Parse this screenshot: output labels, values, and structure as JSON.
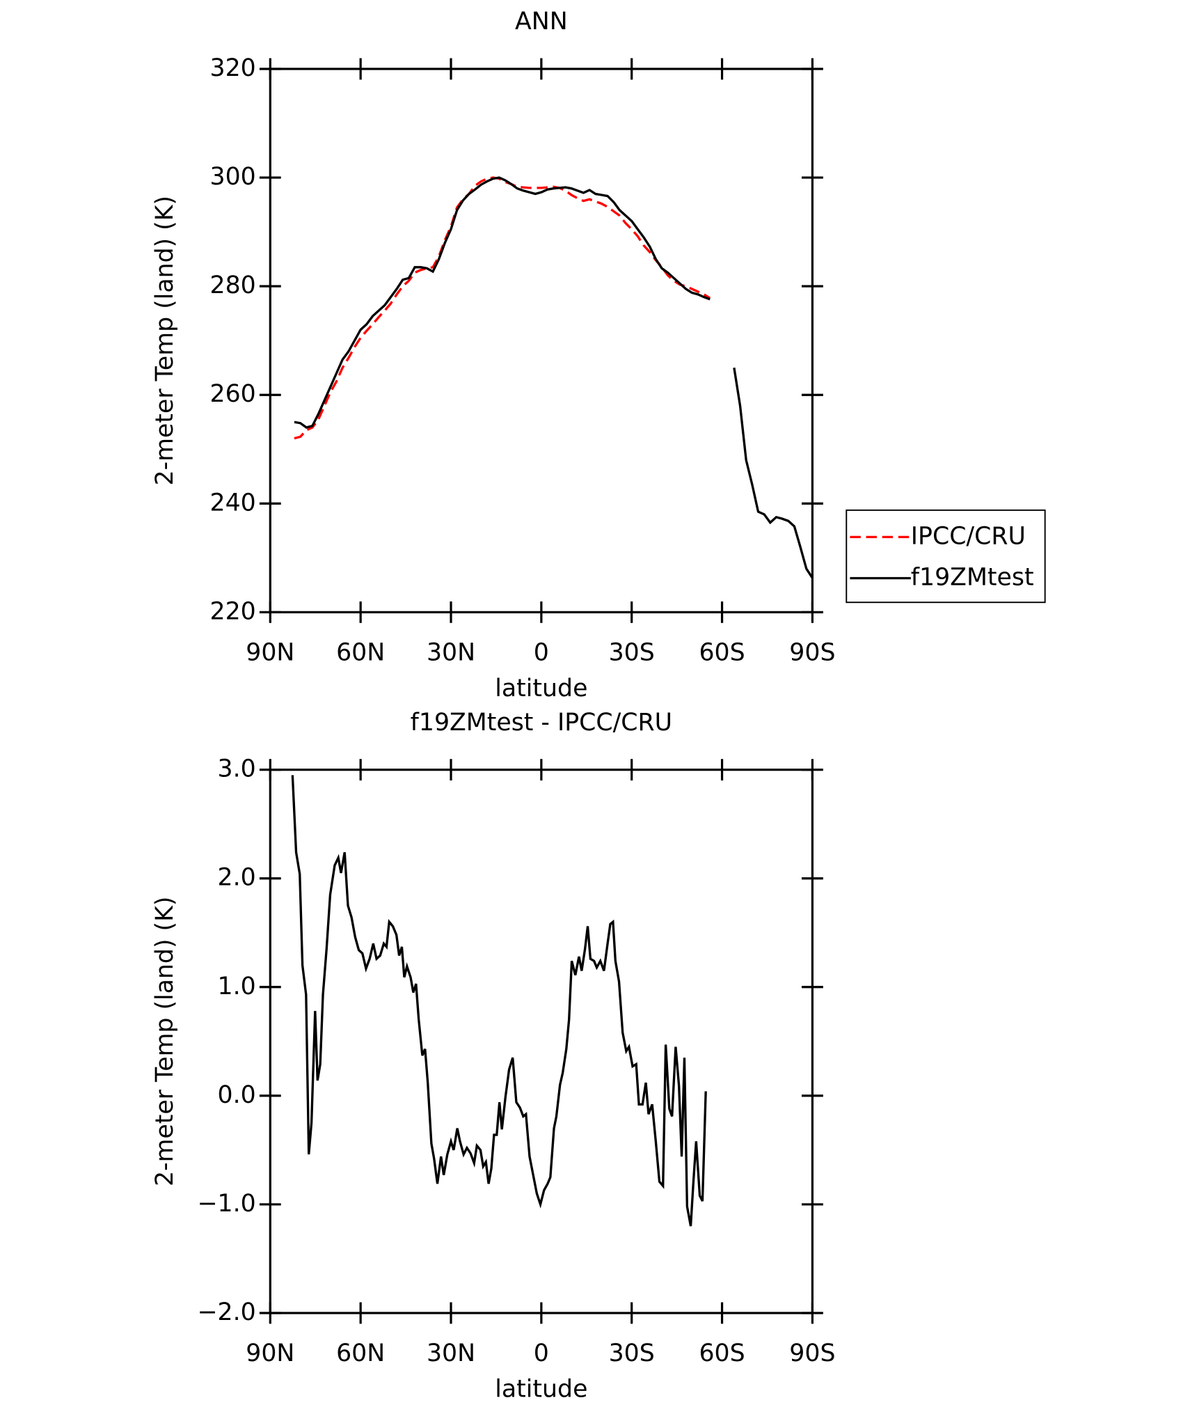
{
  "chart_data": [
    {
      "type": "line",
      "title": "ANN",
      "x_label": "latitude",
      "y_label": "2-meter Temp (land) (K)",
      "x": [
        82,
        80,
        78,
        76,
        74,
        72,
        70,
        68,
        66,
        64,
        62,
        60,
        58,
        56,
        54,
        52,
        50,
        48,
        46,
        44,
        42,
        40,
        38,
        36,
        34,
        32,
        30,
        28,
        26,
        24,
        22,
        20,
        18,
        16,
        14,
        12,
        10,
        8,
        6,
        4,
        2,
        0,
        -2,
        -4,
        -6,
        -8,
        -10,
        -12,
        -14,
        -16,
        -18,
        -20,
        -22,
        -24,
        -26,
        -28,
        -30,
        -32,
        -34,
        -36,
        -38,
        -40,
        -42,
        -44,
        -46,
        -48,
        -50,
        -52,
        -54,
        -56,
        -58,
        -60,
        -62,
        -64,
        -66,
        -68,
        -70,
        -72,
        -74,
        -76,
        -78,
        -80,
        -82,
        -84,
        -86,
        -88,
        -90
      ],
      "series": [
        {
          "name": "IPCC/CRU",
          "color": "#ff0000",
          "linestyle": "dashed",
          "values": [
            252,
            252.3,
            253.5,
            254,
            255.5,
            258,
            260.5,
            262.5,
            265,
            266.8,
            268.8,
            270.5,
            271.8,
            273,
            274.3,
            275.5,
            276.8,
            278.5,
            280,
            281,
            282.5,
            283,
            283.3,
            283.5,
            285.5,
            288.5,
            291,
            294.5,
            296,
            297,
            298.5,
            299.3,
            299.8,
            300,
            299.8,
            299.2,
            298.8,
            298.3,
            298.2,
            298.1,
            298.1,
            298.1,
            298.2,
            298.3,
            298.1,
            297.6,
            296.8,
            296.2,
            295.7,
            296,
            295.6,
            295.2,
            294.6,
            293.8,
            293,
            291.6,
            290.5,
            289.2,
            287.5,
            286.3,
            284.8,
            283.5,
            282,
            281,
            280.3,
            280,
            279.5,
            279,
            278.5,
            277.8,
            null,
            null,
            null,
            null,
            null,
            null,
            null,
            null,
            null,
            null,
            null,
            null,
            null,
            null,
            null,
            null,
            null
          ]
        },
        {
          "name": "f19ZMtest",
          "color": "#000000",
          "linestyle": "solid",
          "values": [
            255,
            254.8,
            254,
            254.3,
            256.5,
            259,
            261.5,
            264,
            266.5,
            268,
            270,
            272,
            273,
            274.5,
            275.5,
            276.5,
            278,
            279.5,
            281.2,
            281.5,
            283.5,
            283.5,
            283.3,
            282.7,
            285,
            288,
            290.5,
            294,
            295.8,
            297,
            297.8,
            298.7,
            299.3,
            299.8,
            300,
            299.5,
            298.8,
            298,
            297.6,
            297.3,
            297,
            297.3,
            297.8,
            298,
            298.1,
            298.2,
            298,
            297.6,
            297.2,
            297.7,
            297,
            296.8,
            296.6,
            295.5,
            294,
            293,
            292,
            290.5,
            289,
            287.3,
            285,
            283.3,
            282.5,
            281.5,
            280.5,
            279.5,
            278.8,
            278.5,
            278,
            277.6,
            null,
            null,
            null,
            265,
            258,
            248,
            243.5,
            238.5,
            238,
            236.5,
            237.5,
            237.2,
            236.8,
            235.8,
            232,
            228,
            226.3
          ]
        }
      ],
      "xlim": [
        90,
        -90
      ],
      "xticks": [
        {
          "value": 90,
          "label": "90N"
        },
        {
          "value": 60,
          "label": "60N"
        },
        {
          "value": 30,
          "label": "30N"
        },
        0,
        {
          "value": -30,
          "label": "30S"
        },
        {
          "value": -60,
          "label": "60S"
        },
        {
          "value": -90,
          "label": "90S"
        }
      ],
      "ylim": [
        220,
        320
      ],
      "yticks": [
        220,
        240,
        260,
        280,
        300,
        320
      ],
      "legend": "right"
    },
    {
      "type": "line",
      "title": "f19ZMtest - IPCC/CRU",
      "x_label": "latitude",
      "y_label": "2-meter Temp (land) (K)",
      "x": [
        82.6,
        81.4,
        80.2,
        79.3,
        78.1,
        77.2,
        76.3,
        75.1,
        74.3,
        73.4,
        72.5,
        71.3,
        70.1,
        68.6,
        67.4,
        66.5,
        65.3,
        64.2,
        63.0,
        61.8,
        60.6,
        59.4,
        58.2,
        57.0,
        55.8,
        54.7,
        53.5,
        52.3,
        51.4,
        50.5,
        49.3,
        48.1,
        47.2,
        46.3,
        45.5,
        44.6,
        43.4,
        42.5,
        41.6,
        40.7,
        39.5,
        38.6,
        37.7,
        36.5,
        35.6,
        34.5,
        33.3,
        32.4,
        31.2,
        30.0,
        29.1,
        27.9,
        27.0,
        25.8,
        24.7,
        23.5,
        22.3,
        21.4,
        20.2,
        19.3,
        18.4,
        17.5,
        16.6,
        15.7,
        14.8,
        13.9,
        13.1,
        11.9,
        10.7,
        9.5,
        8.3,
        7.1,
        6.0,
        5.1,
        3.9,
        2.7,
        1.5,
        0.3,
        -0.9,
        -2.1,
        -3.0,
        -4.2,
        -5.0,
        -6.2,
        -7.1,
        -8.3,
        -9.2,
        -10.1,
        -11.3,
        -12.5,
        -13.4,
        -14.5,
        -15.4,
        -16.3,
        -17.5,
        -18.4,
        -19.6,
        -20.8,
        -22.0,
        -22.9,
        -23.8,
        -24.6,
        -25.8,
        -27.0,
        -28.2,
        -29.1,
        -30.3,
        -31.5,
        -32.4,
        -33.6,
        -34.7,
        -35.6,
        -36.8,
        -38.0,
        -39.2,
        -40.4,
        -41.3,
        -42.5,
        -43.4,
        -44.6,
        -45.7,
        -46.6,
        -47.5,
        -48.4,
        -49.6,
        -50.5,
        -51.4,
        -52.6,
        -53.5,
        -54.6
      ],
      "values": [
        2.95,
        2.24,
        2.04,
        1.2,
        0.93,
        -0.54,
        -0.25,
        0.78,
        0.14,
        0.29,
        0.93,
        1.35,
        1.85,
        2.12,
        2.19,
        2.05,
        2.24,
        1.75,
        1.64,
        1.46,
        1.34,
        1.31,
        1.17,
        1.26,
        1.4,
        1.26,
        1.29,
        1.4,
        1.37,
        1.6,
        1.56,
        1.48,
        1.29,
        1.37,
        1.09,
        1.19,
        1.09,
        0.95,
        1.03,
        0.7,
        0.37,
        0.43,
        0.12,
        -0.44,
        -0.58,
        -0.81,
        -0.56,
        -0.73,
        -0.54,
        -0.42,
        -0.5,
        -0.3,
        -0.42,
        -0.54,
        -0.48,
        -0.53,
        -0.62,
        -0.46,
        -0.5,
        -0.65,
        -0.61,
        -0.81,
        -0.67,
        -0.36,
        -0.36,
        -0.06,
        -0.31,
        -0.01,
        0.24,
        0.35,
        -0.06,
        -0.11,
        -0.19,
        -0.17,
        -0.56,
        -0.73,
        -0.9,
        -1.0,
        -0.87,
        -0.81,
        -0.75,
        -0.3,
        -0.19,
        0.1,
        0.21,
        0.43,
        0.7,
        1.24,
        1.11,
        1.28,
        1.15,
        1.35,
        1.56,
        1.26,
        1.24,
        1.18,
        1.24,
        1.15,
        1.4,
        1.58,
        1.6,
        1.24,
        1.05,
        0.58,
        0.41,
        0.45,
        0.27,
        0.29,
        -0.08,
        -0.08,
        0.12,
        -0.17,
        -0.08,
        -0.42,
        -0.79,
        -0.83,
        0.47,
        -0.12,
        -0.19,
        0.45,
        0.09,
        -0.56,
        0.35,
        -1.02,
        -1.2,
        -0.79,
        -0.42,
        -0.92,
        -0.97,
        0.04
      ],
      "color": "#000000",
      "xlim": [
        90,
        -90
      ],
      "xticks": [
        {
          "value": 90,
          "label": "90N"
        },
        {
          "value": 60,
          "label": "60N"
        },
        {
          "value": 30,
          "label": "30N"
        },
        0,
        {
          "value": -30,
          "label": "30S"
        },
        {
          "value": -60,
          "label": "60S"
        },
        {
          "value": -90,
          "label": "90S"
        }
      ],
      "ylim": [
        -2,
        3
      ],
      "yticks": [
        {
          "value": -2,
          "label": "−2.0"
        },
        {
          "value": -1,
          "label": "−1.0"
        },
        {
          "value": 0,
          "label": "0.0"
        },
        {
          "value": 1,
          "label": "1.0"
        },
        {
          "value": 2,
          "label": "2.0"
        },
        {
          "value": 3,
          "label": "3.0"
        }
      ]
    }
  ]
}
